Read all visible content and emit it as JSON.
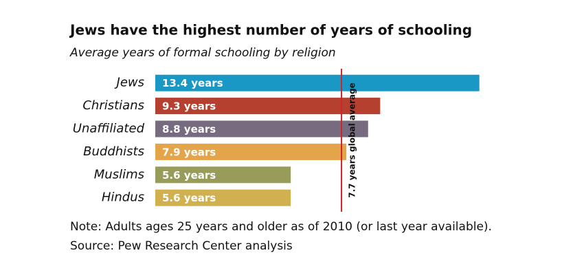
{
  "chart_data": {
    "type": "hbar",
    "title": "Jews have the highest number of years of schooling",
    "subtitle": "Average years of formal schooling by religion",
    "categories": [
      "Jews",
      "Christians",
      "Unaffiliated",
      "Buddhists",
      "Muslims",
      "Hindus"
    ],
    "values": [
      13.4,
      9.3,
      8.8,
      7.9,
      5.6,
      5.6
    ],
    "value_labels": [
      "13.4 years",
      "9.3 years",
      "8.8 years",
      "7.9 years",
      "5.6 years",
      "5.6 years"
    ],
    "colors": [
      "#1a98c5",
      "#b5402f",
      "#776b80",
      "#e3a44a",
      "#979c5a",
      "#d0b04f"
    ],
    "reference_line": {
      "value": 7.7,
      "label": "7.7 years global average",
      "color": "#d2232a"
    },
    "note": "Note: Adults ages 25 years and older as of 2010 (or last year available).",
    "source": "Source: Pew Research Center analysis"
  }
}
